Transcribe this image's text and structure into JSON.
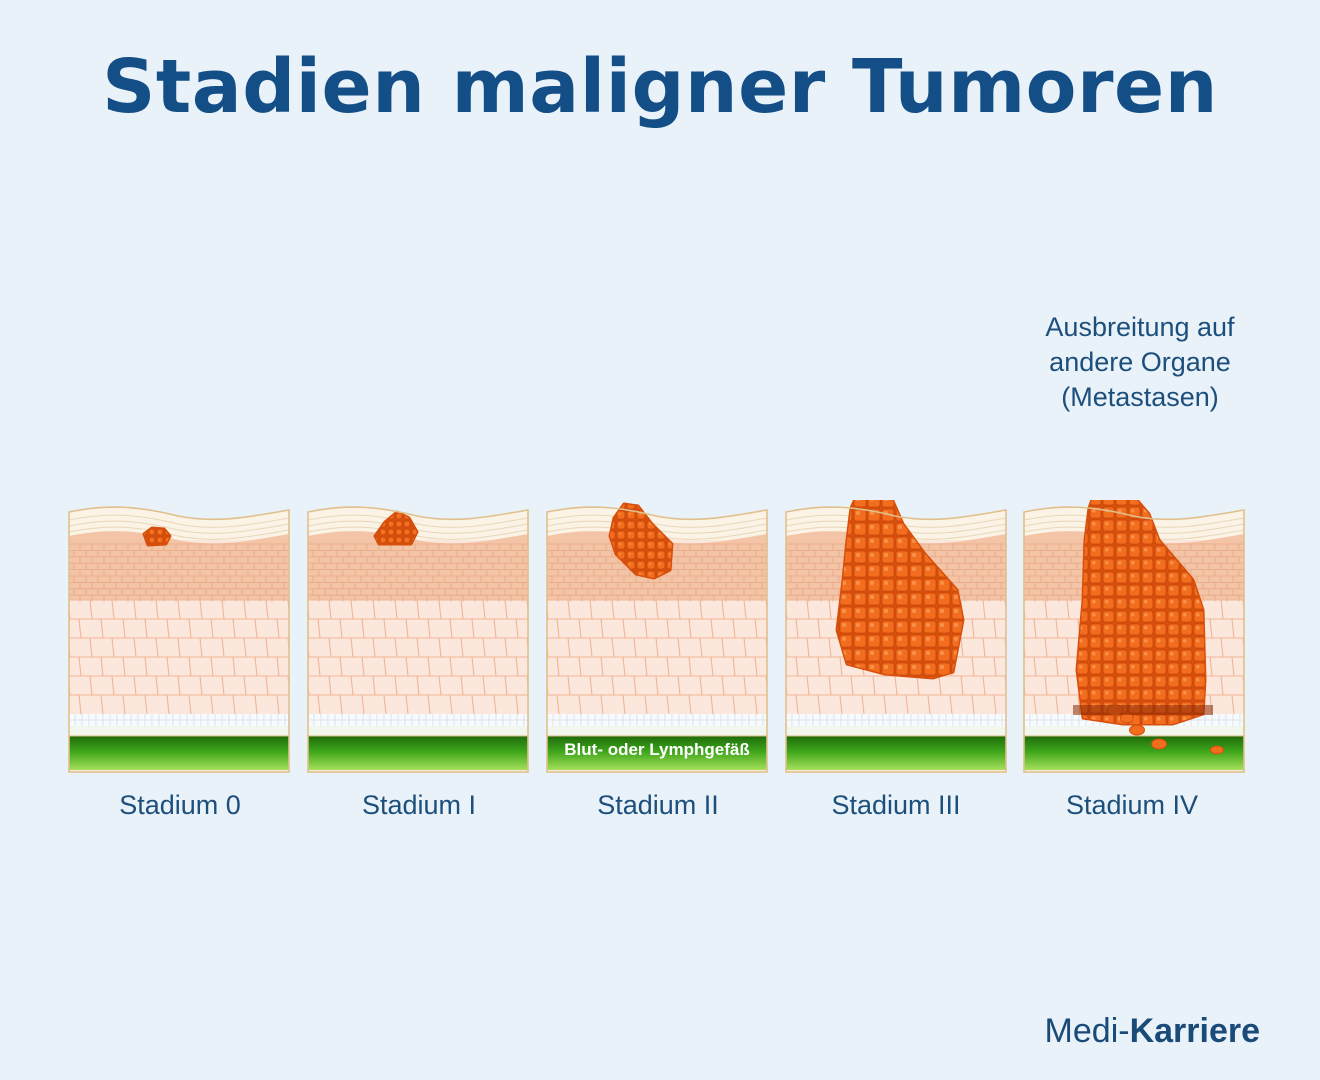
{
  "title": "Stadien maligner Tumoren",
  "metastasis_note": [
    "Ausbreitung auf",
    "andere Organe",
    "(Metastasen)"
  ],
  "vessel_label": "Blut- oder Lymphgefäß",
  "stages": [
    {
      "label": "Stadium 0"
    },
    {
      "label": "Stadium I"
    },
    {
      "label": "Stadium II"
    },
    {
      "label": "Stadium III"
    },
    {
      "label": "Stadium IV"
    }
  ],
  "logo": {
    "part1": "Medi-",
    "part2": "Karriere"
  },
  "colors": {
    "title": "#134f86",
    "text": "#1c4f7c",
    "tumor": "#f36d1e",
    "tumor_dark": "#d64f0c",
    "epidermis": "#f4c4a7",
    "dermis": "#fbe7dc",
    "vessel": "#3da51a",
    "background": "#e9f1f9"
  }
}
